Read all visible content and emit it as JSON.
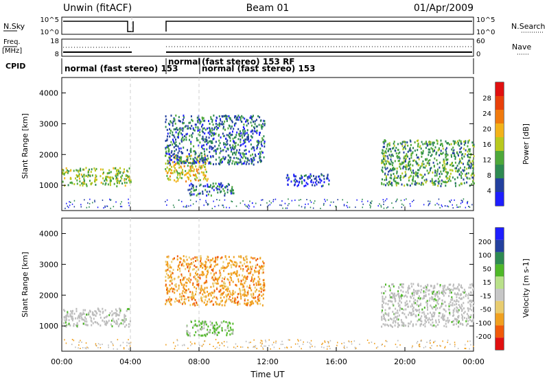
{
  "header": {
    "site": "Unwin (fitACF)",
    "beam": "Beam 01",
    "date": "01/Apr/2009"
  },
  "top_panels": {
    "noise_left_label": "N.Sky",
    "noise_right_label": "N.Search",
    "noise_left_ticks": [
      "10^5",
      "10^0"
    ],
    "noise_right_ticks": [
      "10^5",
      "10^0"
    ],
    "freq_left_label_1": "Freq.",
    "freq_left_label_2": "[MHz]",
    "freq_left_ticks": [
      "18",
      "8"
    ],
    "freq_right_label": "Nave",
    "freq_right_ticks": [
      "60",
      "0"
    ],
    "cpid_label": "CPID",
    "cpid_1": "normal (fast stereo) 153",
    "cpid_2": "normal",
    "cpid_3": "(fast stereo) 153 RF",
    "cpid_4": "normal (fast stereo) 153"
  },
  "x_axis": {
    "label": "Time UT",
    "ticks": [
      "00:00",
      "04:00",
      "08:00",
      "12:00",
      "16:00",
      "20:00",
      "00:00"
    ]
  },
  "colors": {
    "power": [
      "#1e1eff",
      "#23409e",
      "#2e8a52",
      "#4ea83a",
      "#b8c81e",
      "#f2b21a",
      "#f07a0e",
      "#e8400a",
      "#e01010"
    ],
    "velocity": [
      "#e01010",
      "#f05a0a",
      "#f0a020",
      "#e8cc70",
      "#c6c6c6",
      "#b9e08a",
      "#4fb828",
      "#2e8a52",
      "#23409e",
      "#1e1eff"
    ],
    "ground": "#bdbdbd"
  },
  "chart_data": [
    {
      "type": "heatmap",
      "name": "Power",
      "ylabel": "Slant Range [km]",
      "xlabel": "Time UT",
      "x_range_hours": [
        0,
        24
      ],
      "ylim": [
        180,
        4500
      ],
      "yticks": [
        "1000",
        "2000",
        "3000",
        "4000"
      ],
      "colorbar": {
        "label": "Power [dB]",
        "range": [
          0,
          32
        ],
        "ticks": [
          "4",
          "8",
          "12",
          "16",
          "20",
          "24",
          "28"
        ]
      },
      "data_gaps_hours": [
        [
          4.0,
          6.0
        ]
      ],
      "regions": [
        {
          "t": [
            0.0,
            4.0
          ],
          "range_km": [
            1000,
            1600
          ],
          "power_db": 18
        },
        {
          "t": [
            6.0,
            8.5
          ],
          "range_km": [
            1150,
            2000
          ],
          "power_db": 22
        },
        {
          "t": [
            6.0,
            11.8
          ],
          "range_km": [
            1700,
            3300
          ],
          "power_db": 12
        },
        {
          "t": [
            7.2,
            10.0
          ],
          "range_km": [
            700,
            1100
          ],
          "power_db": 10
        },
        {
          "t": [
            13.0,
            15.6
          ],
          "range_km": [
            1000,
            1400
          ],
          "power_db": 6
        },
        {
          "t": [
            18.6,
            24.0
          ],
          "range_km": [
            1000,
            2500
          ],
          "power_db": 16
        }
      ]
    },
    {
      "type": "heatmap",
      "name": "Velocity",
      "ylabel": "Slant Range [km]",
      "xlabel": "Time UT",
      "x_range_hours": [
        0,
        24
      ],
      "ylim": [
        180,
        4500
      ],
      "yticks": [
        "1000",
        "2000",
        "3000",
        "4000"
      ],
      "colorbar": {
        "label": "Velocity [m s-1]",
        "ticks": [
          "200",
          "100",
          "50",
          "15",
          "-15",
          "-50",
          "-100",
          "-200"
        ]
      },
      "data_gaps_hours": [
        [
          4.0,
          6.0
        ]
      ],
      "regions": [
        {
          "t": [
            0.0,
            4.0
          ],
          "range_km": [
            1000,
            1600
          ],
          "velocity": 0
        },
        {
          "t": [
            6.0,
            11.8
          ],
          "range_km": [
            1700,
            3300
          ],
          "velocity": -60
        },
        {
          "t": [
            7.2,
            10.0
          ],
          "range_km": [
            700,
            1200
          ],
          "velocity": 20
        },
        {
          "t": [
            18.6,
            24.0
          ],
          "range_km": [
            1000,
            2400
          ],
          "velocity": 0
        }
      ]
    }
  ]
}
